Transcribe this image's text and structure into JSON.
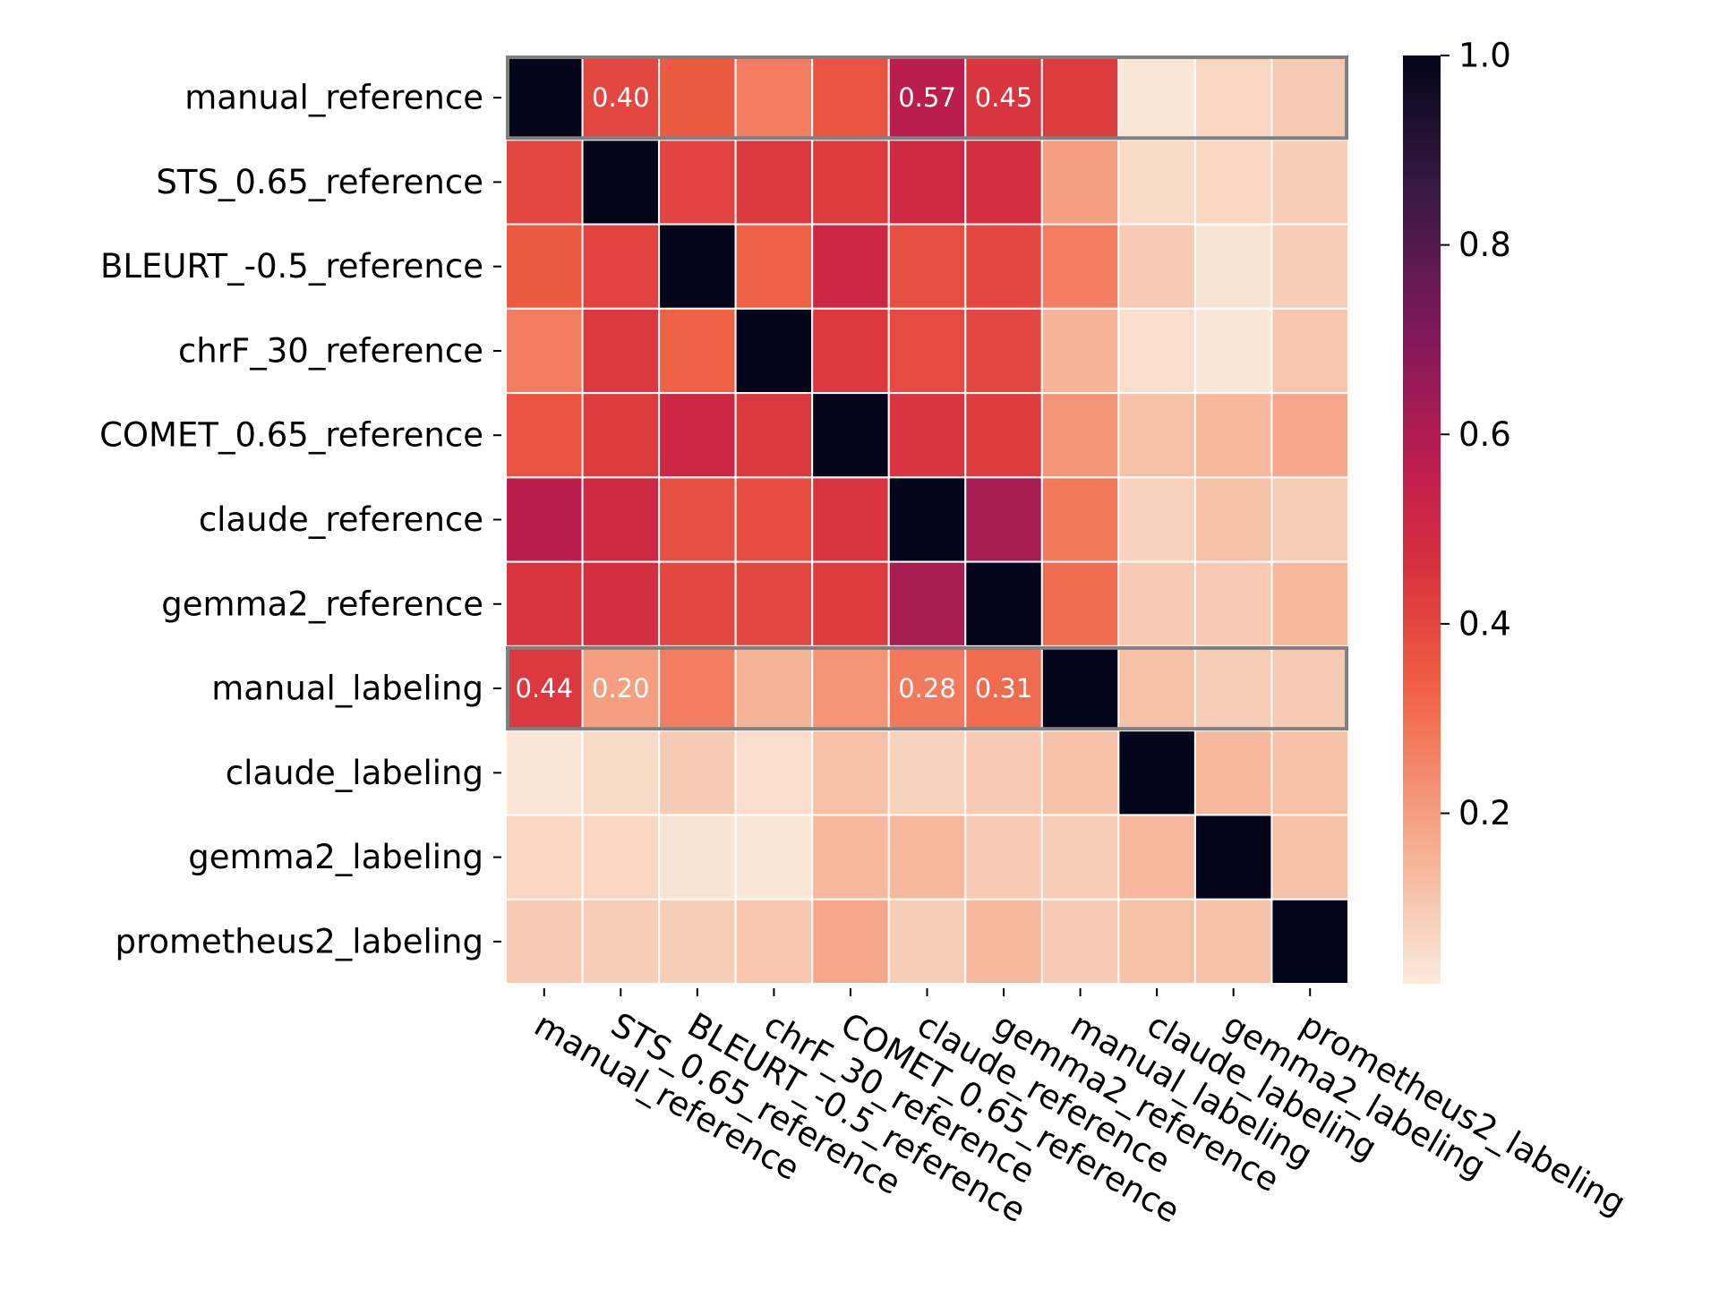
{
  "chart_data": {
    "type": "heatmap",
    "title": "",
    "xlabel": "",
    "ylabel": "",
    "labels": [
      "manual_reference",
      "STS_0.65_reference",
      "BLEURT_-0.5_reference",
      "chrF_30_reference",
      "COMET_0.65_reference",
      "claude_reference",
      "gemma2_reference",
      "manual_labeling",
      "claude_labeling",
      "gemma2_labeling",
      "prometheus2_labeling"
    ],
    "matrix": [
      [
        1.0,
        0.4,
        0.35,
        0.27,
        0.37,
        0.57,
        0.45,
        0.43,
        0.03,
        0.07,
        0.1
      ],
      [
        0.4,
        1.0,
        0.41,
        0.44,
        0.43,
        0.5,
        0.47,
        0.2,
        0.06,
        0.07,
        0.09
      ],
      [
        0.35,
        0.41,
        1.0,
        0.33,
        0.51,
        0.38,
        0.4,
        0.27,
        0.1,
        0.04,
        0.09
      ],
      [
        0.27,
        0.44,
        0.33,
        1.0,
        0.44,
        0.39,
        0.4,
        0.15,
        0.05,
        0.03,
        0.11
      ],
      [
        0.37,
        0.43,
        0.51,
        0.44,
        1.0,
        0.45,
        0.43,
        0.22,
        0.12,
        0.14,
        0.18
      ],
      [
        0.57,
        0.5,
        0.38,
        0.39,
        0.45,
        1.0,
        0.62,
        0.28,
        0.08,
        0.12,
        0.09
      ],
      [
        0.45,
        0.47,
        0.4,
        0.4,
        0.43,
        0.62,
        1.0,
        0.31,
        0.1,
        0.1,
        0.14
      ],
      [
        0.44,
        0.2,
        0.27,
        0.15,
        0.22,
        0.28,
        0.31,
        1.0,
        0.12,
        0.09,
        0.1
      ],
      [
        0.03,
        0.06,
        0.1,
        0.05,
        0.12,
        0.08,
        0.1,
        0.12,
        1.0,
        0.14,
        0.12
      ],
      [
        0.07,
        0.07,
        0.04,
        0.03,
        0.14,
        0.14,
        0.1,
        0.09,
        0.14,
        1.0,
        0.12
      ],
      [
        0.1,
        0.09,
        0.09,
        0.11,
        0.18,
        0.09,
        0.14,
        0.1,
        0.12,
        0.12,
        1.0
      ]
    ],
    "annotations": [
      {
        "row": 0,
        "col": 1,
        "text": "0.40"
      },
      {
        "row": 0,
        "col": 5,
        "text": "0.57"
      },
      {
        "row": 0,
        "col": 6,
        "text": "0.45"
      },
      {
        "row": 7,
        "col": 0,
        "text": "0.44"
      },
      {
        "row": 7,
        "col": 1,
        "text": "0.20"
      },
      {
        "row": 7,
        "col": 5,
        "text": "0.28"
      },
      {
        "row": 7,
        "col": 6,
        "text": "0.31"
      }
    ],
    "highlighted_rows": [
      0,
      7
    ],
    "colorbar": {
      "range": [
        0.02,
        1.0
      ],
      "ticks": [
        "0.2",
        "0.4",
        "0.6",
        "0.8",
        "1.0"
      ],
      "tick_values": [
        0.2,
        0.4,
        0.6,
        0.8,
        1.0
      ]
    },
    "colormap": "rocket_r",
    "grid": false
  },
  "colors": {
    "highlight_border": "#808080",
    "cell_border": "#ffffff",
    "annotation_text": "#ffffff"
  }
}
